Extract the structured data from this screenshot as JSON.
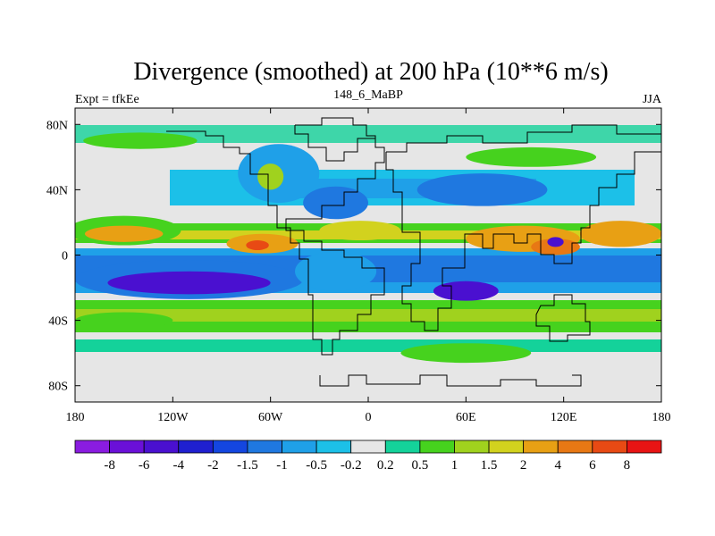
{
  "chart_data": {
    "type": "heatmap",
    "title": "Divergence (smoothed) at 200 hPa (10**6 m/s)",
    "left_label": "Expt = tfkEe",
    "center_label": "148_6_MaBP",
    "right_label": "JJA",
    "x_ticks": [
      "180",
      "120W",
      "60W",
      "0",
      "60E",
      "120E",
      "180"
    ],
    "y_ticks": [
      "80N",
      "40N",
      "0",
      "40S",
      "80S"
    ],
    "xlim": [
      -180,
      180
    ],
    "ylim": [
      -90,
      90
    ],
    "x_tick_values": [
      -180,
      -120,
      -60,
      0,
      60,
      120,
      180
    ],
    "y_tick_values": [
      80,
      40,
      0,
      -40,
      -80
    ],
    "colorbar": {
      "colors": [
        "#8a1ce0",
        "#6a10d8",
        "#4a10d0",
        "#1f20d0",
        "#1446e0",
        "#1f78e0",
        "#1fa0e8",
        "#1cc0e8",
        "#e6e6e6",
        "#14d29a",
        "#46d21e",
        "#a0d21e",
        "#d2d21e",
        "#e8a014",
        "#e87814",
        "#e84a14",
        "#e81414"
      ],
      "labels": [
        "-8",
        "-6",
        "-4",
        "-2",
        "-1.5",
        "-1",
        "-0.5",
        "-0.2",
        "0.2",
        "0.5",
        "1",
        "1.5",
        "2",
        "4",
        "6",
        "8"
      ]
    },
    "features": [
      {
        "level": "0.5",
        "lon": -150,
        "lat": 15,
        "rx": 35,
        "ry": 9
      },
      {
        "level": "2",
        "lon": -150,
        "lat": 13,
        "rx": 24,
        "ry": 5
      },
      {
        "level": "-1",
        "lon": -110,
        "lat": -15,
        "rx": 70,
        "ry": 12
      },
      {
        "level": "-4",
        "lon": -110,
        "lat": -17,
        "rx": 50,
        "ry": 7
      },
      {
        "level": "2",
        "lon": -65,
        "lat": 7,
        "rx": 22,
        "ry": 6
      },
      {
        "level": "6",
        "lon": -68,
        "lat": 6,
        "rx": 7,
        "ry": 3
      },
      {
        "level": "-0.5",
        "lon": -20,
        "lat": -10,
        "rx": 25,
        "ry": 12
      },
      {
        "level": "-1",
        "lon": -20,
        "lat": 32,
        "rx": 20,
        "ry": 10
      },
      {
        "level": "1.5",
        "lon": -5,
        "lat": 15,
        "rx": 25,
        "ry": 6
      },
      {
        "level": "-0.5",
        "lon": -55,
        "lat": 50,
        "rx": 25,
        "ry": 18
      },
      {
        "level": "1",
        "lon": -60,
        "lat": 48,
        "rx": 8,
        "ry": 8
      },
      {
        "level": "-4",
        "lon": 60,
        "lat": -22,
        "rx": 20,
        "ry": 6
      },
      {
        "level": "2",
        "lon": 95,
        "lat": 10,
        "rx": 35,
        "ry": 8
      },
      {
        "level": "4",
        "lon": 115,
        "lat": 5,
        "rx": 15,
        "ry": 5
      },
      {
        "level": "-4",
        "lon": 115,
        "lat": 8,
        "rx": 5,
        "ry": 3
      },
      {
        "level": "2",
        "lon": 155,
        "lat": 13,
        "rx": 25,
        "ry": 8
      },
      {
        "level": "0.5",
        "lon": -140,
        "lat": 70,
        "rx": 35,
        "ry": 5
      },
      {
        "level": "0.5",
        "lon": 60,
        "lat": -60,
        "rx": 40,
        "ry": 6
      },
      {
        "level": "0.5",
        "lon": -150,
        "lat": -40,
        "rx": 30,
        "ry": 5
      },
      {
        "level": "-1",
        "lon": 70,
        "lat": 40,
        "rx": 40,
        "ry": 10
      },
      {
        "level": "0.5",
        "lon": 100,
        "lat": 60,
        "rx": 40,
        "ry": 6
      }
    ]
  }
}
